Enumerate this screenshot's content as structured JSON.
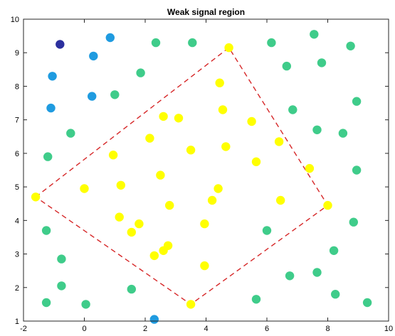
{
  "chart_data": {
    "type": "scatter",
    "title": "Weak signal region",
    "xlabel": "",
    "ylabel": "",
    "xlim": [
      -2,
      10
    ],
    "ylim": [
      1,
      10
    ],
    "xticks": [
      "-2",
      "0",
      "2",
      "4",
      "6",
      "8",
      "10"
    ],
    "yticks": [
      "1",
      "2",
      "3",
      "4",
      "5",
      "6",
      "7",
      "8",
      "9",
      "10"
    ],
    "grid": false,
    "legend": "none",
    "region_polygon": {
      "color": "#d62728",
      "style": "dashed",
      "vertices": [
        [
          -1.6,
          4.7
        ],
        [
          4.75,
          9.15
        ],
        [
          8.0,
          4.45
        ],
        [
          3.5,
          1.5
        ]
      ]
    },
    "series": [
      {
        "color": "#ffff00",
        "points": [
          [
            -1.6,
            4.7
          ],
          [
            4.75,
            9.15
          ],
          [
            8.0,
            4.45
          ],
          [
            3.5,
            1.5
          ],
          [
            4.45,
            8.1
          ],
          [
            4.55,
            7.3
          ],
          [
            2.6,
            7.1
          ],
          [
            3.1,
            7.05
          ],
          [
            5.5,
            6.95
          ],
          [
            2.15,
            6.45
          ],
          [
            6.4,
            6.35
          ],
          [
            4.65,
            6.2
          ],
          [
            3.5,
            6.1
          ],
          [
            0.95,
            5.95
          ],
          [
            5.65,
            5.75
          ],
          [
            7.4,
            5.55
          ],
          [
            2.5,
            5.35
          ],
          [
            1.2,
            5.05
          ],
          [
            0.0,
            4.95
          ],
          [
            4.4,
            4.95
          ],
          [
            4.2,
            4.6
          ],
          [
            6.45,
            4.6
          ],
          [
            2.8,
            4.45
          ],
          [
            1.15,
            4.1
          ],
          [
            1.8,
            3.9
          ],
          [
            3.95,
            3.9
          ],
          [
            1.55,
            3.65
          ],
          [
            2.75,
            3.25
          ],
          [
            2.6,
            3.1
          ],
          [
            2.3,
            2.95
          ],
          [
            3.95,
            2.65
          ]
        ]
      },
      {
        "color": "#3fcc8a",
        "points": [
          [
            7.55,
            9.55
          ],
          [
            2.35,
            9.3
          ],
          [
            3.55,
            9.3
          ],
          [
            6.15,
            9.3
          ],
          [
            8.75,
            9.2
          ],
          [
            7.8,
            8.7
          ],
          [
            6.65,
            8.6
          ],
          [
            1.85,
            8.4
          ],
          [
            1.0,
            7.75
          ],
          [
            8.95,
            7.55
          ],
          [
            6.85,
            7.3
          ],
          [
            -0.45,
            6.6
          ],
          [
            7.65,
            6.7
          ],
          [
            8.5,
            6.6
          ],
          [
            -1.2,
            5.9
          ],
          [
            8.95,
            5.5
          ],
          [
            -1.25,
            3.7
          ],
          [
            6.0,
            3.7
          ],
          [
            8.85,
            3.95
          ],
          [
            8.2,
            3.1
          ],
          [
            -0.75,
            2.85
          ],
          [
            6.75,
            2.35
          ],
          [
            7.65,
            2.45
          ],
          [
            -0.75,
            2.05
          ],
          [
            1.55,
            1.95
          ],
          [
            5.65,
            1.65
          ],
          [
            8.25,
            1.8
          ],
          [
            -1.25,
            1.55
          ],
          [
            0.05,
            1.5
          ],
          [
            9.3,
            1.55
          ]
        ]
      },
      {
        "color": "#1f9be0",
        "points": [
          [
            0.85,
            9.45
          ],
          [
            0.3,
            8.9
          ],
          [
            -1.05,
            8.3
          ],
          [
            0.25,
            7.7
          ],
          [
            -1.1,
            7.35
          ],
          [
            2.3,
            1.05
          ]
        ]
      },
      {
        "color": "#2b2f9e",
        "points": [
          [
            -0.8,
            9.25
          ]
        ]
      }
    ]
  }
}
